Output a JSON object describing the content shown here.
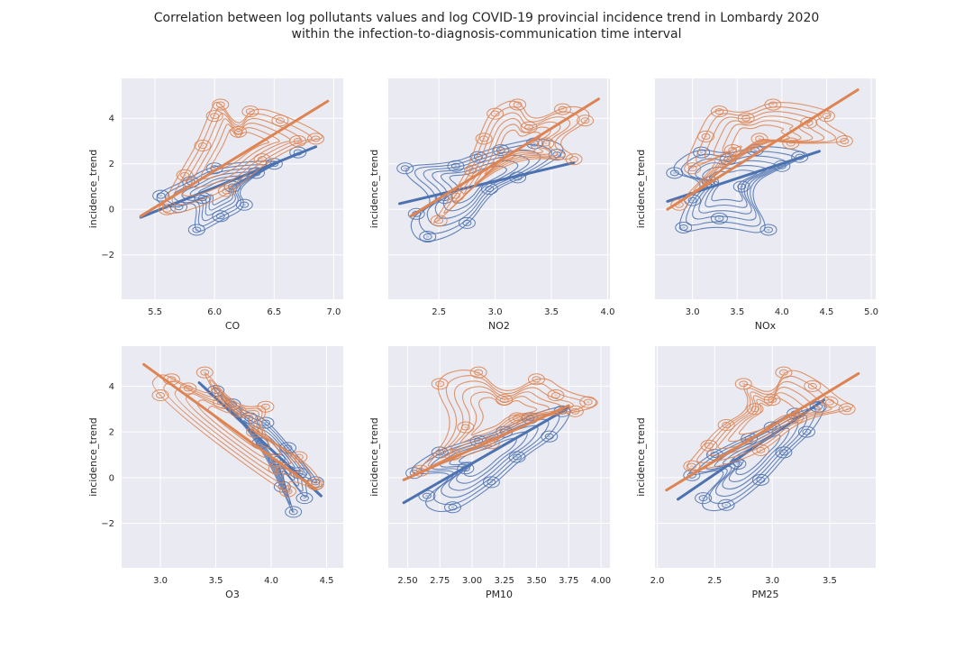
{
  "figure": {
    "title_line1": "Correlation between log pollutants values and log COVID-19 provincial incidence trend in Lombardy 2020",
    "title_line2": "within the infection-to-diagnosis-communication time interval"
  },
  "colors": {
    "series_blue": "#4c72b0",
    "series_orange": "#dd8452",
    "panel_background": "#eaeaf2",
    "grid": "#ffffff"
  },
  "chart_data": [
    {
      "type": "scatter",
      "xlabel": "CO",
      "ylabel": "incidence_trend",
      "xlim": [
        5.22,
        7.08
      ],
      "ylim": [
        -3.95,
        5.75
      ],
      "xticks": [
        5.5,
        6.0,
        6.5,
        7.0
      ],
      "xtick_labels": [
        "5.5",
        "6.0",
        "6.5",
        "7.0"
      ],
      "yticks": [
        -2,
        0,
        2,
        4
      ],
      "ytick_labels": [
        "−2",
        "0",
        "2",
        "4"
      ],
      "show_ylabels": true,
      "grid": true,
      "overlay": "kde_contours",
      "series": [
        {
          "color": "blue",
          "fit": [
            [
              5.38,
              -0.35
            ],
            [
              6.85,
              2.75
            ]
          ],
          "points": [
            [
              5.55,
              0.6
            ],
            [
              5.7,
              0.1
            ],
            [
              5.8,
              1.2
            ],
            [
              5.85,
              -0.9
            ],
            [
              5.9,
              0.5
            ],
            [
              6.0,
              1.8
            ],
            [
              6.05,
              -0.3
            ],
            [
              6.15,
              1.0
            ],
            [
              6.25,
              0.2
            ],
            [
              6.35,
              1.6
            ],
            [
              6.5,
              2.0
            ],
            [
              6.7,
              2.5
            ]
          ]
        },
        {
          "color": "orange",
          "fit": [
            [
              5.38,
              -0.3
            ],
            [
              6.95,
              4.75
            ]
          ],
          "points": [
            [
              5.6,
              0.0
            ],
            [
              5.75,
              1.5
            ],
            [
              5.9,
              2.8
            ],
            [
              6.0,
              4.1
            ],
            [
              6.1,
              0.8
            ],
            [
              6.2,
              3.4
            ],
            [
              6.3,
              4.3
            ],
            [
              6.4,
              2.2
            ],
            [
              6.55,
              3.9
            ],
            [
              6.7,
              3.0
            ],
            [
              6.85,
              3.1
            ],
            [
              6.05,
              4.6
            ]
          ]
        }
      ]
    },
    {
      "type": "scatter",
      "xlabel": "NO2",
      "ylabel": "incidence_trend",
      "xlim": [
        2.05,
        4.02
      ],
      "ylim": [
        -3.95,
        5.75
      ],
      "xticks": [
        2.5,
        3.0,
        3.5,
        4.0
      ],
      "xtick_labels": [
        "2.5",
        "3.0",
        "3.5",
        "4.0"
      ],
      "yticks": [
        -2,
        0,
        2,
        4
      ],
      "ytick_labels": [
        "−2",
        "0",
        "2",
        "4"
      ],
      "show_ylabels": false,
      "grid": true,
      "overlay": "kde_contours",
      "series": [
        {
          "color": "blue",
          "fit": [
            [
              2.15,
              0.25
            ],
            [
              3.7,
              2.05
            ]
          ],
          "points": [
            [
              2.2,
              1.8
            ],
            [
              2.4,
              -1.2
            ],
            [
              2.55,
              0.5
            ],
            [
              2.65,
              1.9
            ],
            [
              2.75,
              -0.6
            ],
            [
              2.85,
              2.3
            ],
            [
              2.95,
              0.9
            ],
            [
              3.05,
              2.6
            ],
            [
              3.2,
              1.4
            ],
            [
              3.35,
              2.9
            ],
            [
              3.55,
              2.4
            ],
            [
              2.3,
              -0.2
            ]
          ]
        },
        {
          "color": "orange",
          "fit": [
            [
              2.25,
              -0.3
            ],
            [
              3.92,
              4.85
            ]
          ],
          "points": [
            [
              2.5,
              -0.5
            ],
            [
              2.65,
              0.6
            ],
            [
              2.8,
              1.7
            ],
            [
              2.9,
              3.1
            ],
            [
              3.0,
              4.2
            ],
            [
              3.1,
              2.4
            ],
            [
              3.2,
              4.6
            ],
            [
              3.3,
              3.6
            ],
            [
              3.45,
              2.9
            ],
            [
              3.6,
              4.4
            ],
            [
              3.8,
              3.9
            ],
            [
              3.7,
              2.2
            ]
          ]
        }
      ]
    },
    {
      "type": "scatter",
      "xlabel": "NOx",
      "ylabel": "incidence_trend",
      "xlim": [
        2.58,
        5.05
      ],
      "ylim": [
        -3.95,
        5.75
      ],
      "xticks": [
        3.0,
        3.5,
        4.0,
        4.5,
        5.0
      ],
      "xtick_labels": [
        "3.0",
        "3.5",
        "4.0",
        "4.5",
        "5.0"
      ],
      "yticks": [
        -2,
        0,
        2,
        4
      ],
      "ytick_labels": [
        "−2",
        "0",
        "2",
        "4"
      ],
      "show_ylabels": false,
      "grid": true,
      "overlay": "kde_contours",
      "series": [
        {
          "color": "blue",
          "fit": [
            [
              2.72,
              0.35
            ],
            [
              4.42,
              2.55
            ]
          ],
          "points": [
            [
              2.8,
              1.6
            ],
            [
              2.9,
              -0.8
            ],
            [
              3.0,
              0.4
            ],
            [
              3.1,
              2.5
            ],
            [
              3.2,
              1.2
            ],
            [
              3.3,
              -0.4
            ],
            [
              3.4,
              2.2
            ],
            [
              3.55,
              1.0
            ],
            [
              3.7,
              2.6
            ],
            [
              3.85,
              -0.9
            ],
            [
              4.0,
              1.9
            ],
            [
              4.2,
              2.3
            ]
          ]
        },
        {
          "color": "orange",
          "fit": [
            [
              2.72,
              0.0
            ],
            [
              4.85,
              5.25
            ]
          ],
          "points": [
            [
              2.85,
              0.2
            ],
            [
              3.0,
              1.8
            ],
            [
              3.15,
              3.2
            ],
            [
              3.3,
              4.3
            ],
            [
              3.45,
              2.6
            ],
            [
              3.6,
              4.0
            ],
            [
              3.75,
              3.1
            ],
            [
              3.9,
              4.6
            ],
            [
              4.1,
              2.9
            ],
            [
              4.3,
              3.8
            ],
            [
              4.7,
              3.0
            ],
            [
              4.5,
              4.1
            ]
          ]
        }
      ]
    },
    {
      "type": "scatter",
      "xlabel": "O3",
      "ylabel": "incidence_trend",
      "xlim": [
        2.65,
        4.65
      ],
      "ylim": [
        -3.95,
        5.75
      ],
      "xticks": [
        3.0,
        3.5,
        4.0,
        4.5
      ],
      "xtick_labels": [
        "3.0",
        "3.5",
        "4.0",
        "4.5"
      ],
      "yticks": [
        -2,
        0,
        2,
        4
      ],
      "ytick_labels": [
        "−2",
        "0",
        "2",
        "4"
      ],
      "show_ylabels": true,
      "grid": true,
      "overlay": "kde_contours",
      "series": [
        {
          "color": "blue",
          "fit": [
            [
              3.35,
              4.15
            ],
            [
              4.45,
              -0.8
            ]
          ],
          "points": [
            [
              3.5,
              3.8
            ],
            [
              3.65,
              3.2
            ],
            [
              3.8,
              2.6
            ],
            [
              3.9,
              1.5
            ],
            [
              3.95,
              2.4
            ],
            [
              4.05,
              0.8
            ],
            [
              4.1,
              -0.4
            ],
            [
              4.15,
              1.3
            ],
            [
              4.2,
              -1.5
            ],
            [
              4.25,
              0.2
            ],
            [
              4.3,
              -0.9
            ],
            [
              4.4,
              -0.2
            ]
          ]
        },
        {
          "color": "orange",
          "fit": [
            [
              2.85,
              4.95
            ],
            [
              4.4,
              -0.5
            ]
          ],
          "points": [
            [
              3.0,
              3.6
            ],
            [
              3.1,
              4.3
            ],
            [
              3.25,
              3.9
            ],
            [
              3.4,
              4.6
            ],
            [
              3.55,
              3.3
            ],
            [
              3.7,
              2.9
            ],
            [
              3.85,
              2.0
            ],
            [
              3.95,
              3.1
            ],
            [
              4.05,
              0.4
            ],
            [
              4.15,
              -0.6
            ],
            [
              4.25,
              0.9
            ],
            [
              4.4,
              -0.3
            ]
          ]
        }
      ]
    },
    {
      "type": "scatter",
      "xlabel": "PM10",
      "ylabel": "incidence_trend",
      "xlim": [
        2.35,
        4.07
      ],
      "ylim": [
        -3.95,
        5.75
      ],
      "xticks": [
        2.5,
        2.75,
        3.0,
        3.25,
        3.5,
        3.75,
        4.0
      ],
      "xtick_labels": [
        "2.50",
        "2.75",
        "3.00",
        "3.25",
        "3.50",
        "3.75",
        "4.00"
      ],
      "yticks": [
        -2,
        0,
        2,
        4
      ],
      "ytick_labels": [
        "−2",
        "0",
        "2",
        "4"
      ],
      "show_ylabels": false,
      "grid": true,
      "overlay": "kde_contours",
      "series": [
        {
          "color": "blue",
          "fit": [
            [
              2.47,
              -1.1
            ],
            [
              3.75,
              3.05
            ]
          ],
          "points": [
            [
              2.55,
              0.2
            ],
            [
              2.65,
              -0.8
            ],
            [
              2.75,
              1.1
            ],
            [
              2.85,
              -1.3
            ],
            [
              2.95,
              0.4
            ],
            [
              3.05,
              1.6
            ],
            [
              3.15,
              -0.2
            ],
            [
              3.25,
              2.0
            ],
            [
              3.35,
              0.9
            ],
            [
              3.45,
              2.6
            ],
            [
              3.6,
              1.8
            ],
            [
              3.7,
              2.9
            ]
          ]
        },
        {
          "color": "orange",
          "fit": [
            [
              2.47,
              -0.1
            ],
            [
              3.75,
              3.15
            ]
          ],
          "points": [
            [
              2.6,
              0.3
            ],
            [
              2.75,
              4.1
            ],
            [
              2.85,
              1.0
            ],
            [
              2.95,
              2.2
            ],
            [
              3.05,
              4.6
            ],
            [
              3.15,
              1.5
            ],
            [
              3.25,
              3.4
            ],
            [
              3.35,
              2.6
            ],
            [
              3.5,
              4.3
            ],
            [
              3.65,
              3.6
            ],
            [
              3.8,
              2.9
            ],
            [
              3.9,
              3.3
            ]
          ]
        }
      ]
    },
    {
      "type": "scatter",
      "xlabel": "PM25",
      "ylabel": "incidence_trend",
      "xlim": [
        1.98,
        3.9
      ],
      "ylim": [
        -3.95,
        5.75
      ],
      "xticks": [
        2.0,
        2.5,
        3.0,
        3.5
      ],
      "xtick_labels": [
        "2.0",
        "2.5",
        "3.0",
        "3.5"
      ],
      "yticks": [
        -2,
        0,
        2,
        4
      ],
      "ytick_labels": [
        "−2",
        "0",
        "2",
        "4"
      ],
      "show_ylabels": false,
      "grid": true,
      "overlay": "kde_contours",
      "series": [
        {
          "color": "blue",
          "fit": [
            [
              2.18,
              -0.95
            ],
            [
              3.45,
              3.4
            ]
          ],
          "points": [
            [
              2.3,
              0.1
            ],
            [
              2.4,
              -0.9
            ],
            [
              2.5,
              1.0
            ],
            [
              2.6,
              -1.2
            ],
            [
              2.7,
              0.6
            ],
            [
              2.8,
              1.7
            ],
            [
              2.9,
              -0.1
            ],
            [
              3.0,
              2.2
            ],
            [
              3.1,
              1.1
            ],
            [
              3.2,
              2.8
            ],
            [
              3.3,
              2.0
            ],
            [
              3.4,
              3.1
            ]
          ]
        },
        {
          "color": "orange",
          "fit": [
            [
              2.08,
              -0.55
            ],
            [
              3.75,
              4.55
            ]
          ],
          "points": [
            [
              2.3,
              0.5
            ],
            [
              2.45,
              1.4
            ],
            [
              2.6,
              2.3
            ],
            [
              2.75,
              4.1
            ],
            [
              2.9,
              1.2
            ],
            [
              3.0,
              3.4
            ],
            [
              3.1,
              4.6
            ],
            [
              3.2,
              2.6
            ],
            [
              3.35,
              4.0
            ],
            [
              3.5,
              3.3
            ],
            [
              3.65,
              3.0
            ],
            [
              2.85,
              3.0
            ]
          ]
        }
      ]
    }
  ]
}
